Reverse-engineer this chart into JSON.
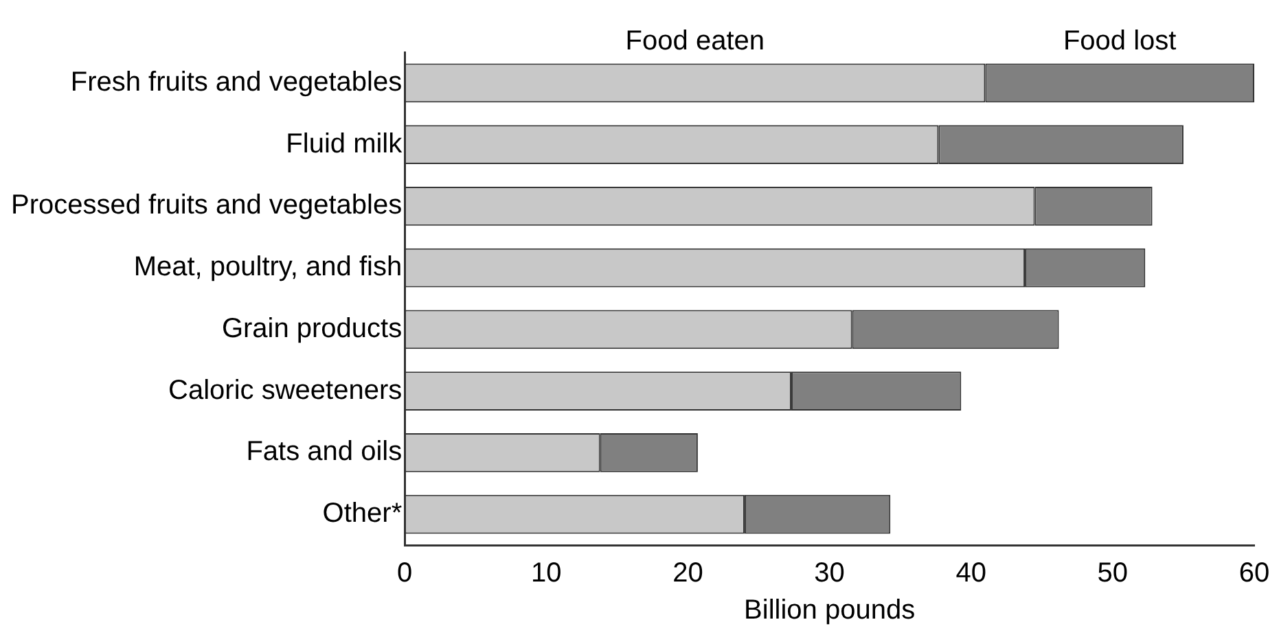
{
  "chart_data": {
    "type": "bar",
    "orientation": "horizontal",
    "stacked": true,
    "xlabel": "Billion pounds",
    "categories": [
      "Fresh fruits and vegetables",
      "Fluid milk",
      "Processed fruits and vegetables",
      "Meat, poultry, and fish",
      "Grain products",
      "Caloric sweeteners",
      "Fats and oils",
      "Other*"
    ],
    "series": [
      {
        "name": "Food eaten",
        "color": "#c8c8c8",
        "values": [
          41,
          37.7,
          44.5,
          43.8,
          31.6,
          27.3,
          13.8,
          24
        ]
      },
      {
        "name": "Food lost",
        "color": "#808080",
        "values": [
          19,
          17.3,
          8.3,
          8.5,
          14.6,
          12,
          6.9,
          10.3
        ]
      }
    ],
    "xlim": [
      0,
      60
    ],
    "xticks": [
      0,
      10,
      20,
      30,
      40,
      50,
      60
    ],
    "grid": false,
    "legend": false
  }
}
